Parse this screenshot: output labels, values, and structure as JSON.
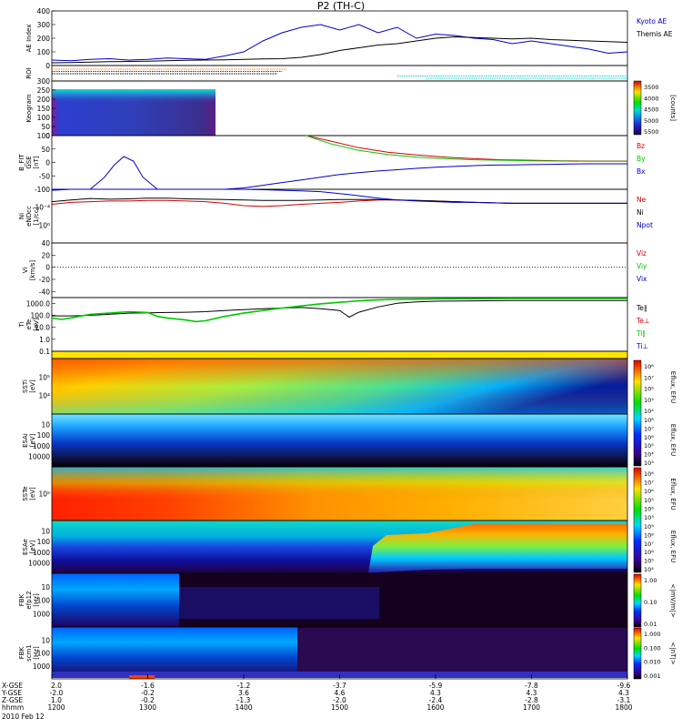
{
  "title": "P2 (TH-C)",
  "date_label": "2010 Feb 12",
  "colors": {
    "red": "#d40000",
    "green": "#00c800",
    "blue": "#0000c8",
    "black": "#000000",
    "orange": "#ff8800",
    "cyan": "#00d8d8",
    "yellow": "#ffe600"
  },
  "chart_data": [
    {
      "type": "line",
      "panel": "ae",
      "ylabel": "AE Index",
      "ylim": [
        0,
        400
      ],
      "yticks": [
        0,
        100,
        200,
        300,
        400
      ],
      "xlim": [
        1200,
        1800
      ],
      "series": [
        {
          "name": "Kyoto AE",
          "color": "blue",
          "x": [
            1200,
            1220,
            1240,
            1260,
            1280,
            1300,
            1320,
            1340,
            1360,
            1380,
            1400,
            1420,
            1440,
            1460,
            1480,
            1500,
            1520,
            1540,
            1560,
            1580,
            1600,
            1620,
            1640,
            1660,
            1680,
            1700,
            1720,
            1740,
            1760,
            1780,
            1800
          ],
          "y": [
            40,
            35,
            45,
            50,
            40,
            45,
            55,
            50,
            45,
            70,
            100,
            180,
            240,
            280,
            300,
            260,
            300,
            240,
            280,
            200,
            230,
            220,
            200,
            190,
            160,
            180,
            160,
            140,
            120,
            90,
            100
          ]
        },
        {
          "name": "Themis AE",
          "color": "black",
          "x": [
            1200,
            1220,
            1240,
            1260,
            1280,
            1300,
            1320,
            1340,
            1360,
            1380,
            1400,
            1420,
            1440,
            1460,
            1480,
            1500,
            1520,
            1540,
            1560,
            1580,
            1600,
            1620,
            1640,
            1660,
            1680,
            1700,
            1720,
            1740,
            1760,
            1780,
            1800
          ],
          "y": [
            20,
            22,
            25,
            28,
            30,
            32,
            35,
            38,
            40,
            42,
            45,
            48,
            50,
            60,
            80,
            110,
            130,
            150,
            160,
            180,
            200,
            210,
            205,
            200,
            195,
            200,
            190,
            185,
            180,
            175,
            170
          ]
        }
      ]
    },
    {
      "type": "timeline",
      "panel": "roi",
      "ylabel": "ROI",
      "xlim": [
        1200,
        1800
      ],
      "bars": [
        {
          "color": "orange",
          "x0": 1200,
          "x1": 1445
        },
        {
          "color": "red",
          "x0": 1200,
          "x1": 1440
        },
        {
          "color": "black",
          "x0": 1200,
          "x1": 1435
        },
        {
          "color": "cyan",
          "x0": 1560,
          "x1": 1800
        },
        {
          "color": "cyan",
          "x0": 1590,
          "x1": 1800
        }
      ]
    },
    {
      "type": "heatmap",
      "panel": "keogram",
      "ylabel": "Keogram",
      "ylim": [
        0,
        300
      ],
      "yticks": [
        0,
        50,
        100,
        150,
        200,
        250,
        300
      ],
      "xlim": [
        1200,
        1800
      ],
      "data_extent_x": [
        1200,
        1375
      ],
      "colorbar": {
        "label": "[counts]",
        "ticks": [
          3500,
          4000,
          4500,
          5000,
          5500
        ]
      }
    },
    {
      "type": "line",
      "panel": "bfit",
      "ylabel": "B_FIT",
      "ylabel2": "GSE",
      "yunit": "[nT]",
      "ylim": [
        -100,
        100
      ],
      "yticks": [
        -100,
        -50,
        0,
        50,
        100
      ],
      "xlim": [
        1200,
        1800
      ],
      "series": [
        {
          "name": "Bz",
          "color": "red",
          "x": [
            1465,
            1490,
            1520,
            1550,
            1580,
            1610,
            1640,
            1670,
            1700,
            1730,
            1760,
            1800
          ],
          "y": [
            100,
            80,
            55,
            38,
            28,
            20,
            14,
            10,
            8,
            6,
            5,
            5
          ]
        },
        {
          "name": "By",
          "color": "green",
          "x": [
            1465,
            1490,
            1520,
            1550,
            1580,
            1610,
            1640,
            1670,
            1700,
            1730,
            1760,
            1800
          ],
          "y": [
            100,
            70,
            45,
            30,
            20,
            14,
            10,
            8,
            6,
            5,
            4,
            4
          ]
        },
        {
          "name": "Bx",
          "color": "blue",
          "x": [
            1200,
            1220,
            1240,
            1255,
            1265,
            1275,
            1285,
            1295,
            1310,
            1320,
            1340,
            1360,
            1380,
            1400,
            1420,
            1440,
            1460,
            1480,
            1500,
            1520,
            1540,
            1560,
            1580,
            1600,
            1620,
            1640,
            1660,
            1680,
            1700,
            1720,
            1740,
            1760,
            1780,
            1800
          ],
          "y": [
            -100,
            -100,
            -100,
            -55,
            -10,
            22,
            5,
            -55,
            -100,
            -100,
            -100,
            -100,
            -100,
            -95,
            -85,
            -75,
            -65,
            -55,
            -45,
            -38,
            -32,
            -27,
            -22,
            -18,
            -15,
            -12,
            -10,
            -9,
            -8,
            -7,
            -6,
            -5,
            -5,
            -5
          ]
        }
      ]
    },
    {
      "type": "line",
      "panel": "density",
      "yscale": "log",
      "ylabel": "Ni",
      "ylabel2": "eNDcc",
      "yunit": "[1/cc]",
      "ylim": [
        0.0001,
        10
      ],
      "xlim": [
        1200,
        1800
      ],
      "ytick_labels": [
        "10⁻⁴",
        "10⁰"
      ],
      "series": [
        {
          "name": "Ne",
          "color": "red",
          "x": [
            1200,
            1220,
            1240,
            1260,
            1280,
            1300,
            1320,
            1340,
            1360,
            1380,
            1400,
            1420,
            1440,
            1460,
            1480,
            1500,
            1520,
            1540,
            1560,
            1580,
            1600,
            1620,
            1640,
            1680,
            1720,
            1760,
            1800
          ],
          "y": [
            0.4,
            0.6,
            0.7,
            0.8,
            0.8,
            0.9,
            0.9,
            0.8,
            0.7,
            0.5,
            0.3,
            0.25,
            0.3,
            0.4,
            0.5,
            0.6,
            0.8,
            1.0,
            1.0,
            0.9,
            0.8,
            0.7,
            0.6,
            0.5,
            0.5,
            0.5,
            0.5
          ]
        },
        {
          "name": "Ni",
          "color": "black",
          "x": [
            1200,
            1220,
            1240,
            1260,
            1280,
            1300,
            1320,
            1340,
            1360,
            1380,
            1400,
            1420,
            1440,
            1460,
            1480,
            1500,
            1520,
            1540,
            1560,
            1580,
            1600,
            1620,
            1640,
            1680,
            1720,
            1760,
            1800
          ],
          "y": [
            0.7,
            1.0,
            1.4,
            1.2,
            1.3,
            1.5,
            1.5,
            1.3,
            1.2,
            1.1,
            1.0,
            0.9,
            0.9,
            0.9,
            1.0,
            1.1,
            1.1,
            1.1,
            1.0,
            0.9,
            0.8,
            0.7,
            0.6,
            0.5,
            0.5,
            0.5,
            0.5
          ]
        },
        {
          "name": "Npot",
          "color": "blue",
          "x": [
            1200,
            1220,
            1240,
            1260,
            1280,
            1300,
            1320,
            1340,
            1360,
            1380,
            1400,
            1420,
            1440,
            1460,
            1480,
            1500,
            1520,
            1540,
            1560,
            1580,
            1600,
            1620,
            1640,
            1680,
            1720,
            1760,
            1800
          ],
          "y": [
            8,
            10,
            12,
            14,
            15,
            15,
            14,
            13,
            12,
            11,
            10,
            9,
            8,
            7,
            6,
            4,
            2.5,
            1.5,
            1.0,
            0.8,
            0.7,
            0.6,
            0.6,
            0.5,
            0.5,
            0.5,
            0.5
          ]
        }
      ]
    },
    {
      "type": "line",
      "panel": "velocity",
      "ylabel": "Vi",
      "yunit": "[km/s]",
      "ylim": [
        -50,
        40
      ],
      "yticks": [
        -40,
        -20,
        0,
        20,
        40
      ],
      "xlim": [
        1200,
        1800
      ],
      "series": [
        {
          "name": "Viz",
          "color": "red",
          "x": [],
          "y": []
        },
        {
          "name": "Viy",
          "color": "green",
          "x": [],
          "y": []
        },
        {
          "name": "Vix",
          "color": "blue",
          "x": [],
          "y": []
        }
      ],
      "zero_line": true
    },
    {
      "type": "line",
      "panel": "temperature",
      "yscale": "log",
      "ylabel": "Ti",
      "ylabel2": "eTe",
      "yunit": "[eV]",
      "ylim": [
        0.1,
        3000
      ],
      "yticks": [
        0.1,
        1.0,
        10.0,
        100.0,
        1000.0
      ],
      "xlim": [
        1200,
        1800
      ],
      "ytick_labels": [
        "0.1",
        "1.0",
        "10.0",
        "100.0",
        "1000.0"
      ],
      "series": [
        {
          "name": "Te∥",
          "color": "black",
          "x": [
            1200,
            1220,
            1240,
            1260,
            1280,
            1300,
            1320,
            1340,
            1360,
            1380,
            1400,
            1420,
            1440,
            1460,
            1480,
            1500,
            1510,
            1520,
            1540,
            1560,
            1580,
            1600,
            1640,
            1680,
            1720,
            1760,
            1800
          ],
          "y": [
            90,
            90,
            100,
            120,
            150,
            160,
            170,
            180,
            200,
            250,
            300,
            350,
            400,
            450,
            350,
            250,
            70,
            180,
            500,
            1000,
            1300,
            1500,
            1600,
            1700,
            1700,
            1700,
            1700
          ]
        },
        {
          "name": "Te⊥",
          "color": "red",
          "x": [],
          "y": []
        },
        {
          "name": "Ti∥",
          "color": "green",
          "x": [
            1200,
            1210,
            1220,
            1240,
            1260,
            1280,
            1300,
            1310,
            1320,
            1340,
            1350,
            1360,
            1380,
            1400,
            1420,
            1440,
            1460,
            1480,
            1500,
            1520,
            1540,
            1560,
            1580,
            1600,
            1640,
            1680,
            1720,
            1760,
            1800
          ],
          "y": [
            60,
            45,
            60,
            120,
            150,
            200,
            170,
            80,
            60,
            40,
            30,
            35,
            80,
            150,
            250,
            400,
            600,
            900,
            1200,
            1600,
            1900,
            2100,
            2200,
            2300,
            2400,
            2500,
            2500,
            2500,
            2500
          ]
        },
        {
          "name": "Ti⊥",
          "color": "blue",
          "x": [],
          "y": []
        }
      ]
    },
    {
      "type": "heatmap",
      "panel": "sst_i",
      "yscale": "log",
      "ylabel": "SSTi",
      "yunit": "[eV]",
      "ytick_labels": [
        "10⁵",
        "10⁴"
      ],
      "colorbar": {
        "label": "Eflux, EFU",
        "tick_labels": [
          "10⁸",
          "10⁷",
          "10⁶",
          "10⁵",
          "10⁴"
        ]
      }
    },
    {
      "type": "heatmap",
      "panel": "esa_i",
      "yscale": "log",
      "ylabel": "ESAi",
      "yunit": "[eV]",
      "yticks": [
        10,
        100,
        1000,
        10000
      ],
      "ytick_labels": [
        "10",
        "100",
        "1000",
        "10000"
      ],
      "colorbar": {
        "label": "Eflux, EFU",
        "tick_labels": [
          "10⁸",
          "10⁷",
          "10⁶",
          "10⁵",
          "10⁴",
          "10³"
        ]
      }
    },
    {
      "type": "heatmap",
      "panel": "sst_e",
      "yscale": "log",
      "ylabel": "SSTe",
      "yunit": "[eV]",
      "ytick_labels": [
        "10⁵"
      ],
      "colorbar": {
        "label": "Eflux, EFU",
        "tick_labels": [
          "10⁸",
          "10⁷",
          "10⁶",
          "10⁵",
          "10⁴",
          "10³"
        ]
      }
    },
    {
      "type": "heatmap",
      "panel": "esa_e",
      "yscale": "log",
      "ylabel": "ESAe",
      "yunit": "[eV]",
      "yticks": [
        10,
        100,
        1000,
        10000
      ],
      "ytick_labels": [
        "10",
        "100",
        "1000",
        "10000"
      ],
      "colorbar": {
        "label": "Eflux, EFU",
        "tick_labels": [
          "10⁹",
          "10⁸",
          "10⁷",
          "10⁶",
          "10⁵",
          "10⁴"
        ]
      }
    },
    {
      "type": "heatmap",
      "panel": "fbk_e",
      "yscale": "log",
      "ylabel": "FBK",
      "ylabel2": "efp12",
      "yunit": "[Hz]",
      "yticks": [
        10,
        100,
        1000
      ],
      "ytick_labels": [
        "10",
        "100",
        "1000"
      ],
      "colorbar": {
        "label": "<|mV/m|>",
        "tick_labels": [
          "1.00",
          "0.10",
          "0.01"
        ]
      }
    },
    {
      "type": "heatmap",
      "panel": "fbk_b",
      "yscale": "log",
      "ylabel": "FBK",
      "ylabel2": "scm1",
      "yunit": "[Hz]",
      "yticks": [
        10,
        100,
        1000
      ],
      "ytick_labels": [
        "10",
        "100",
        "1000"
      ],
      "colorbar": {
        "label": "<|nT|>",
        "tick_labels": [
          "1.000",
          "0.100",
          "0.010",
          "0.001"
        ]
      }
    }
  ],
  "x_axis": {
    "row_labels": [
      "X-GSE",
      "Y-GSE",
      "Z-GSE",
      "hhmm"
    ],
    "columns": [
      {
        "x": 1200,
        "values": [
          "2.0",
          "-2.0",
          "1.0",
          "1200"
        ]
      },
      {
        "x": 1300,
        "values": [
          "-1.6",
          "-0.2",
          "-0.2",
          "1300"
        ]
      },
      {
        "x": 1400,
        "values": [
          "-1.2",
          "3.6",
          "-1.3",
          "1400"
        ]
      },
      {
        "x": 1500,
        "values": [
          "-3.7",
          "4.6",
          "-2.0",
          "1500"
        ]
      },
      {
        "x": 1600,
        "values": [
          "-5.9",
          "4.3",
          "-2.4",
          "1600"
        ]
      },
      {
        "x": 1700,
        "values": [
          "-7.8",
          "4.3",
          "-2.8",
          "1700"
        ]
      },
      {
        "x": 1800,
        "values": [
          "-9.6",
          "4.3",
          "-3.1",
          "1800"
        ]
      }
    ]
  }
}
